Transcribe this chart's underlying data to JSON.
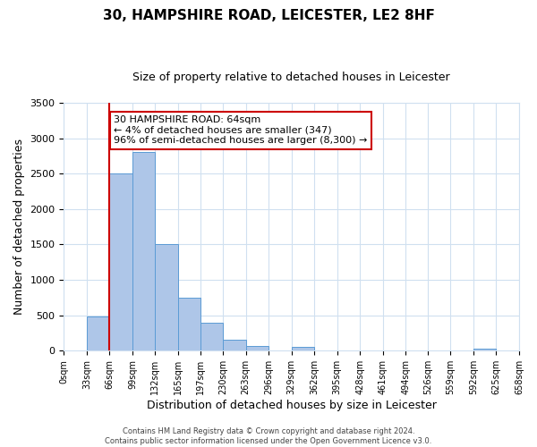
{
  "title": "30, HAMPSHIRE ROAD, LEICESTER, LE2 8HF",
  "subtitle": "Size of property relative to detached houses in Leicester",
  "xlabel": "Distribution of detached houses by size in Leicester",
  "ylabel": "Number of detached properties",
  "bar_left_edges": [
    0,
    33,
    66,
    99,
    132,
    165,
    197,
    230,
    263,
    296,
    329,
    362,
    395,
    428,
    461,
    494,
    526,
    559,
    592,
    625
  ],
  "bar_heights": [
    5,
    490,
    2500,
    2800,
    1500,
    750,
    400,
    150,
    70,
    0,
    60,
    0,
    0,
    0,
    0,
    0,
    0,
    0,
    35,
    0
  ],
  "bar_widths": [
    33,
    33,
    33,
    33,
    33,
    32,
    33,
    33,
    33,
    33,
    33,
    33,
    33,
    33,
    33,
    32,
    33,
    33,
    33,
    33
  ],
  "tick_labels": [
    "0sqm",
    "33sqm",
    "66sqm",
    "99sqm",
    "132sqm",
    "165sqm",
    "197sqm",
    "230sqm",
    "263sqm",
    "296sqm",
    "329sqm",
    "362sqm",
    "395sqm",
    "428sqm",
    "461sqm",
    "494sqm",
    "526sqm",
    "559sqm",
    "592sqm",
    "625sqm",
    "658sqm"
  ],
  "tick_positions": [
    0,
    33,
    66,
    99,
    132,
    165,
    197,
    230,
    263,
    296,
    329,
    362,
    395,
    428,
    461,
    494,
    526,
    559,
    592,
    625,
    658
  ],
  "bar_color": "#aec6e8",
  "bar_edge_color": "#5b9bd5",
  "vline_x": 66,
  "vline_color": "#cc0000",
  "annotation_text": "30 HAMPSHIRE ROAD: 64sqm\n← 4% of detached houses are smaller (347)\n96% of semi-detached houses are larger (8,300) →",
  "annotation_box_color": "#cc0000",
  "ylim": [
    0,
    3500
  ],
  "yticks": [
    0,
    500,
    1000,
    1500,
    2000,
    2500,
    3000,
    3500
  ],
  "grid_color": "#d0e0f0",
  "footer_line1": "Contains HM Land Registry data © Crown copyright and database right 2024.",
  "footer_line2": "Contains public sector information licensed under the Open Government Licence v3.0.",
  "bg_color": "#ffffff",
  "title_fontsize": 11,
  "subtitle_fontsize": 9,
  "axis_label_fontsize": 9,
  "tick_fontsize": 7,
  "ytick_fontsize": 8,
  "annotation_fontsize": 8,
  "footer_fontsize": 6
}
